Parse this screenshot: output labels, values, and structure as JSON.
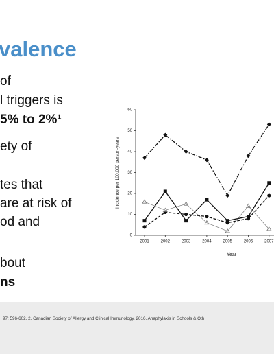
{
  "slide": {
    "title": "valence",
    "lines": [
      {
        "text": "of",
        "bold": false
      },
      {
        "text": "l triggers is",
        "bold": false
      },
      {
        "text": "5% to 2%¹",
        "bold": true
      },
      {
        "text": "ety of",
        "bold": false
      },
      {
        "text": "tes that",
        "bold": false
      },
      {
        "text": "are at risk of",
        "bold": false
      },
      {
        "text": "od and",
        "bold": false
      },
      {
        "text": "bout",
        "bold": false
      },
      {
        "text": "ns",
        "bold": true
      }
    ],
    "footer": "97; 596-602. 2. Canadian Society of Allergy and Clinical Immunology, 2016. Anaphylaxis in Schools & Oth"
  },
  "chart_data": {
    "type": "line",
    "x_label": "Year",
    "y_label": "Incidence per 100,000 person-years",
    "categories": [
      "2001",
      "2002",
      "2003",
      "2004",
      "2005",
      "2006",
      "2007"
    ],
    "series": [
      {
        "color": "#111111",
        "marker": "diamond",
        "line_style": "dashdot",
        "values": [
          37,
          48,
          40,
          36,
          19,
          38,
          53
        ]
      },
      {
        "color": "#111111",
        "marker": "square",
        "line_style": "solid",
        "values": [
          7,
          21,
          7,
          17,
          7,
          9,
          25
        ]
      },
      {
        "color": "#111111",
        "marker": "circle",
        "line_style": "dashed",
        "values": [
          4,
          11,
          10,
          9,
          6,
          8,
          19
        ]
      },
      {
        "color": "#777777",
        "marker": "triangle",
        "line_style": "thin",
        "values": [
          16,
          12,
          15,
          6,
          2,
          14,
          3
        ]
      }
    ],
    "ylim": [
      0,
      60
    ],
    "yticks": [
      0,
      10,
      20,
      30,
      40,
      50,
      60
    ]
  }
}
